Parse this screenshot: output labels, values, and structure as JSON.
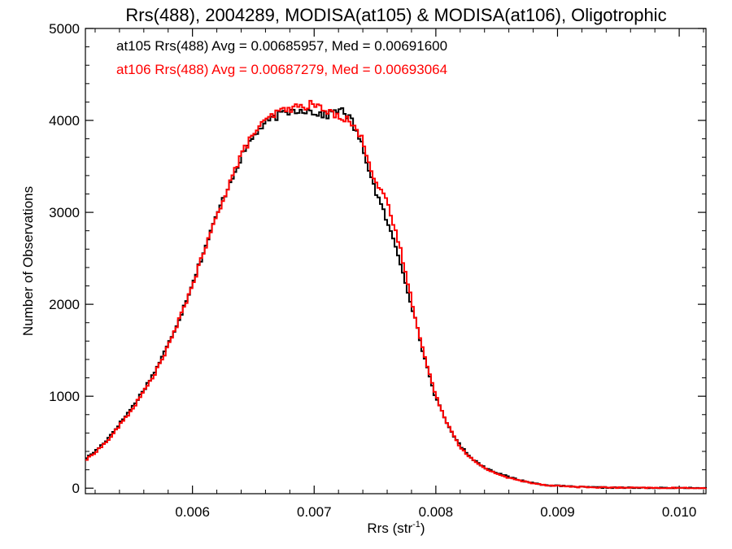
{
  "chart_data": {
    "type": "line",
    "title": "Rrs(488), 2004289, MODISA(at105) & MODISA(at106), Oligotrophic",
    "xlabel": "Rrs (str",
    "xlabel_sup": "-1",
    "xlabel_close": ")",
    "ylabel": "Number of Observations",
    "xlim": [
      0.00512,
      0.01022
    ],
    "ylim": [
      -60,
      5000
    ],
    "xticks": [
      0.006,
      0.007,
      0.008,
      0.009,
      0.01
    ],
    "xtick_labels": [
      "0.006",
      "0.007",
      "0.008",
      "0.009",
      "0.010"
    ],
    "yticks": [
      0,
      1000,
      2000,
      3000,
      4000,
      5000
    ],
    "ytick_labels": [
      "0",
      "1000",
      "2000",
      "3000",
      "4000",
      "5000"
    ],
    "grid": false,
    "line_style": "step",
    "annotations": [
      {
        "text": "at105 Rrs(488) Avg = 0.00685957, Med = 0.00691600",
        "color": "#000000"
      },
      {
        "text": "at106 Rrs(488) Avg = 0.00687279, Med = 0.00693064",
        "color": "#ff0000"
      }
    ],
    "series": [
      {
        "color": "#000000",
        "points": [
          [
            0.00512,
            320
          ],
          [
            0.0052,
            400
          ],
          [
            0.0053,
            530
          ],
          [
            0.0054,
            700
          ],
          [
            0.0055,
            870
          ],
          [
            0.0056,
            1070
          ],
          [
            0.0057,
            1290
          ],
          [
            0.0058,
            1560
          ],
          [
            0.0059,
            1870
          ],
          [
            0.006,
            2230
          ],
          [
            0.0061,
            2600
          ],
          [
            0.0062,
            2970
          ],
          [
            0.0063,
            3300
          ],
          [
            0.0064,
            3600
          ],
          [
            0.0065,
            3830
          ],
          [
            0.0066,
            3970
          ],
          [
            0.0067,
            4050
          ],
          [
            0.0068,
            4100
          ],
          [
            0.0069,
            4120
          ],
          [
            0.007,
            4090
          ],
          [
            0.0071,
            4050
          ],
          [
            0.0072,
            4130
          ],
          [
            0.0073,
            4020
          ],
          [
            0.0074,
            3700
          ],
          [
            0.0075,
            3250
          ],
          [
            0.0076,
            2900
          ],
          [
            0.0077,
            2500
          ],
          [
            0.0078,
            2000
          ],
          [
            0.0079,
            1450
          ],
          [
            0.008,
            980
          ],
          [
            0.0081,
            680
          ],
          [
            0.0082,
            460
          ],
          [
            0.0083,
            320
          ],
          [
            0.0084,
            225
          ],
          [
            0.0085,
            170
          ],
          [
            0.0086,
            120
          ],
          [
            0.0087,
            85
          ],
          [
            0.0088,
            55
          ],
          [
            0.0089,
            35
          ],
          [
            0.009,
            25
          ],
          [
            0.0092,
            12
          ],
          [
            0.0094,
            7
          ],
          [
            0.0096,
            4
          ],
          [
            0.0098,
            2
          ],
          [
            0.01,
            1
          ],
          [
            0.01022,
            0
          ]
        ]
      },
      {
        "color": "#ff0000",
        "points": [
          [
            0.00512,
            300
          ],
          [
            0.0052,
            390
          ],
          [
            0.0053,
            510
          ],
          [
            0.0054,
            680
          ],
          [
            0.0055,
            850
          ],
          [
            0.0056,
            1050
          ],
          [
            0.0057,
            1270
          ],
          [
            0.0058,
            1540
          ],
          [
            0.0059,
            1860
          ],
          [
            0.006,
            2210
          ],
          [
            0.0061,
            2590
          ],
          [
            0.0062,
            2960
          ],
          [
            0.0063,
            3310
          ],
          [
            0.0064,
            3620
          ],
          [
            0.0065,
            3860
          ],
          [
            0.0066,
            3990
          ],
          [
            0.0067,
            4090
          ],
          [
            0.0068,
            4130
          ],
          [
            0.0069,
            4150
          ],
          [
            0.007,
            4180
          ],
          [
            0.0071,
            4090
          ],
          [
            0.0072,
            4060
          ],
          [
            0.0073,
            3990
          ],
          [
            0.0074,
            3780
          ],
          [
            0.0075,
            3350
          ],
          [
            0.0076,
            3100
          ],
          [
            0.0077,
            2650
          ],
          [
            0.0078,
            2050
          ],
          [
            0.0079,
            1470
          ],
          [
            0.008,
            1000
          ],
          [
            0.0081,
            690
          ],
          [
            0.0082,
            450
          ],
          [
            0.0083,
            310
          ],
          [
            0.0084,
            215
          ],
          [
            0.0085,
            160
          ],
          [
            0.0086,
            110
          ],
          [
            0.0087,
            80
          ],
          [
            0.0088,
            55
          ],
          [
            0.0089,
            35
          ],
          [
            0.009,
            25
          ],
          [
            0.0092,
            12
          ],
          [
            0.0094,
            7
          ],
          [
            0.0096,
            4
          ],
          [
            0.0098,
            2
          ],
          [
            0.01,
            1
          ],
          [
            0.01022,
            0
          ]
        ]
      }
    ]
  }
}
